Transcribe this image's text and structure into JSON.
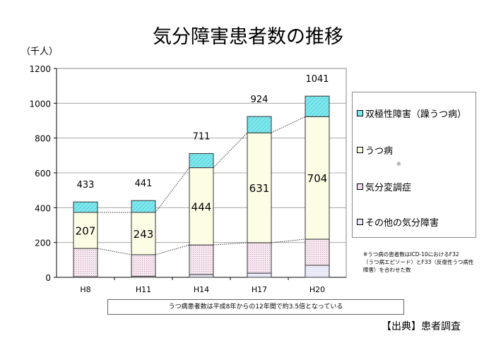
{
  "chart_data": {
    "type": "bar",
    "stacked": true,
    "title": "気分障害患者数の推移",
    "ylabel": "（千人）",
    "ylim": [
      0,
      1200
    ],
    "yticks": [
      0,
      200,
      400,
      600,
      800,
      1000,
      1200
    ],
    "grid": true,
    "legend_position": "right",
    "categories": [
      "H8",
      "H11",
      "H14",
      "H17",
      "H20"
    ],
    "series": [
      {
        "name": "その他の気分障害",
        "values": [
          3,
          6,
          16,
          24,
          69
        ],
        "color": "#e8e8f8"
      },
      {
        "name": "気分変調症",
        "values": [
          163,
          124,
          170,
          175,
          150
        ],
        "color": "#f0dcea"
      },
      {
        "name": "うつ病",
        "values": [
          207,
          243,
          444,
          631,
          704
        ],
        "color": "#fdfde6"
      },
      {
        "name": "双極性障害（躁うつ病）",
        "values": [
          60,
          68,
          81,
          94,
          118
        ],
        "color": "#7fe8ee"
      }
    ],
    "totals": [
      433,
      441,
      711,
      924,
      1041
    ],
    "depression_labels": [
      "207",
      "243",
      "444",
      "631",
      "704"
    ],
    "total_labels": [
      "433",
      "441",
      "711",
      "924",
      "1041"
    ],
    "legend_order": [
      "双極性障害（躁うつ病）",
      "うつ病",
      "気分変調症",
      "その他の気分障害"
    ],
    "legend_note": "※"
  },
  "footnote": [
    "※うつ病の患者数はICD-10におけるF32",
    "（うつ病エピソード）とF33（反復性うつ病性",
    "障害）を合わせた数"
  ],
  "summary_note": "うつ病患者数は平成8年からの12年間で約3.5倍となっている",
  "source": "【出典】患者調査"
}
